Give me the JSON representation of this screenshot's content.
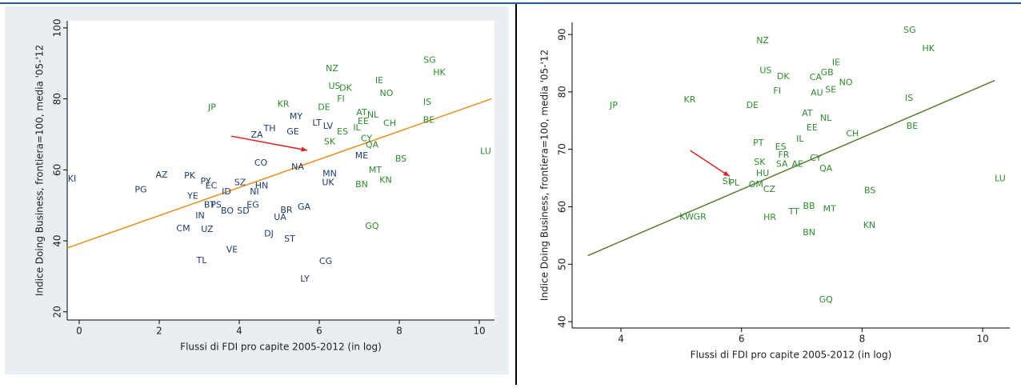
{
  "chart_data": [
    {
      "type": "scatter",
      "x_label": "Flussi di FDI pro capite 2005-2012 (in log)",
      "y_label": "Indice Doing Business, frontiera=100, media '05-'12",
      "xlim": [
        -0.3,
        10.38
      ],
      "ylim": [
        17.7,
        102
      ],
      "xticks": [
        0,
        2,
        4,
        6,
        8,
        10
      ],
      "yticks": [
        20,
        40,
        60,
        80,
        100
      ],
      "series": [
        {
          "color": "#2e8b2e",
          "labels": [
            "NZ",
            "SG",
            "HK",
            "US",
            "DK",
            "IE",
            "FI",
            "NO",
            "IS",
            "JP",
            "KR",
            "DE",
            "AT",
            "NL",
            "BE",
            "EE",
            "CH",
            "IL",
            "CY",
            "QA",
            "BS",
            "LU",
            "MT",
            "KN",
            "BN",
            "GQ",
            "SK",
            "ES"
          ],
          "x": [
            6.32,
            8.76,
            9.0,
            6.38,
            6.66,
            7.5,
            6.54,
            7.68,
            8.7,
            3.32,
            5.1,
            6.12,
            7.06,
            7.34,
            8.74,
            7.1,
            7.76,
            6.94,
            7.18,
            7.32,
            8.04,
            10.16,
            7.4,
            7.66,
            7.06,
            7.32,
            6.26,
            6.58
          ],
          "values": [
            88.5,
            90.8,
            87.4,
            83.5,
            82.9,
            85.1,
            79.9,
            81.5,
            79.0,
            77.5,
            78.4,
            77.5,
            76.1,
            75.4,
            73.9,
            73.6,
            73.0,
            71.8,
            68.7,
            66.9,
            63.0,
            65.1,
            59.9,
            57.0,
            55.8,
            44.1,
            67.8,
            70.7
          ]
        },
        {
          "color": "#1f3b6e",
          "labels": [
            "KI",
            "PG",
            "AZ",
            "PK",
            "PY",
            "EC",
            "YE",
            "BT",
            "IN",
            "CM",
            "UZ",
            "TL",
            "VE",
            "ZA",
            "TH",
            "MY",
            "GE",
            "LT",
            "LV",
            "DJ",
            "ST",
            "UA",
            "BR",
            "GA",
            "CG",
            "LY",
            "NI",
            "HN",
            "SZ",
            "CO",
            "ME",
            "UK",
            "ID",
            "EG",
            "SD",
            "BO",
            "PS",
            "NA",
            "MN"
          ],
          "x": [
            -0.18,
            1.54,
            2.06,
            2.76,
            3.16,
            3.3,
            2.84,
            3.26,
            3.02,
            2.6,
            3.2,
            3.06,
            3.82,
            4.44,
            4.76,
            5.42,
            5.34,
            5.94,
            6.22,
            4.74,
            5.26,
            5.02,
            5.18,
            5.62,
            6.16,
            5.64,
            4.38,
            4.56,
            4.02,
            4.54,
            7.06,
            6.22,
            3.68,
            4.34,
            4.1,
            3.7,
            3.42,
            5.46,
            6.26
          ],
          "values": [
            57.4,
            54.3,
            58.5,
            58.3,
            56.7,
            55.4,
            52.5,
            50.0,
            47.0,
            43.4,
            43.2,
            34.4,
            37.4,
            69.8,
            71.6,
            75.0,
            70.7,
            73.2,
            72.3,
            41.9,
            40.5,
            46.6,
            48.6,
            49.5,
            34.2,
            29.2,
            53.8,
            55.4,
            56.3,
            61.9,
            63.9,
            56.3,
            53.8,
            50.0,
            48.4,
            48.4,
            50.0,
            60.8,
            58.8
          ]
        }
      ],
      "fit": {
        "color": "#e8901a",
        "x": [
          -0.3,
          10.3
        ],
        "values": [
          38,
          80
        ]
      },
      "arrow": {
        "color": "#e02020",
        "x": [
          3.8,
          5.7
        ],
        "values": [
          69.5,
          65.5
        ]
      }
    },
    {
      "type": "scatter",
      "x_label": "Flussi di FDI pro capite 2005-2012 (in log)",
      "y_label": "Indice Doing Business, frontiera=100, media '05-'12",
      "xlim": [
        3.19,
        10.45
      ],
      "ylim": [
        38.9,
        92.1
      ],
      "xticks": [
        4,
        6,
        8,
        10
      ],
      "yticks": [
        40,
        50,
        60,
        70,
        80,
        90
      ],
      "series": [
        {
          "color": "#2e8b2e",
          "labels": [
            "SG",
            "NZ",
            "HK",
            "IE",
            "US",
            "GB",
            "DK",
            "CA",
            "NO",
            "SE",
            "AU",
            "FI",
            "IS",
            "JP",
            "KR",
            "DE",
            "AT",
            "NL",
            "BE",
            "EE",
            "CH",
            "IL",
            "PT",
            "ES",
            "FR",
            "CY",
            "SK",
            "SA",
            "AE",
            "QA",
            "HU",
            "SI",
            "PL",
            "OM",
            "CZ",
            "BS",
            "LU",
            "BB",
            "TT",
            "MT",
            "HR",
            "KW",
            "GR",
            "KN",
            "BN",
            "GQ"
          ],
          "x": [
            8.79,
            6.35,
            9.1,
            7.57,
            6.4,
            7.42,
            6.69,
            7.23,
            7.73,
            7.48,
            7.25,
            6.59,
            8.78,
            3.88,
            5.14,
            6.18,
            7.09,
            7.4,
            8.83,
            7.17,
            7.84,
            6.97,
            6.28,
            6.65,
            6.7,
            7.23,
            6.3,
            6.67,
            6.93,
            7.4,
            6.35,
            5.75,
            5.88,
            6.24,
            6.46,
            8.13,
            10.29,
            7.12,
            6.87,
            7.46,
            6.47,
            5.09,
            5.31,
            8.12,
            7.12,
            7.4
          ],
          "values": [
            90.7,
            88.9,
            87.5,
            85.1,
            83.7,
            83.3,
            82.6,
            82.5,
            81.6,
            80.3,
            79.8,
            80.1,
            78.9,
            77.6,
            78.6,
            77.6,
            76.2,
            75.4,
            74.0,
            73.7,
            72.7,
            71.8,
            71.1,
            70.4,
            69.0,
            68.4,
            67.7,
            67.4,
            67.4,
            66.6,
            65.8,
            64.4,
            64.1,
            63.8,
            63.0,
            62.8,
            64.9,
            60.1,
            59.1,
            59.6,
            58.1,
            58.2,
            58.2,
            56.7,
            55.5,
            43.8
          ]
        }
      ],
      "fit": {
        "color": "#5a7d2e",
        "x": [
          3.45,
          10.2
        ],
        "values": [
          51.5,
          82
        ]
      },
      "arrow": {
        "color": "#e02020",
        "x": [
          5.15,
          5.8
        ],
        "values": [
          69.8,
          65.3
        ]
      }
    }
  ]
}
